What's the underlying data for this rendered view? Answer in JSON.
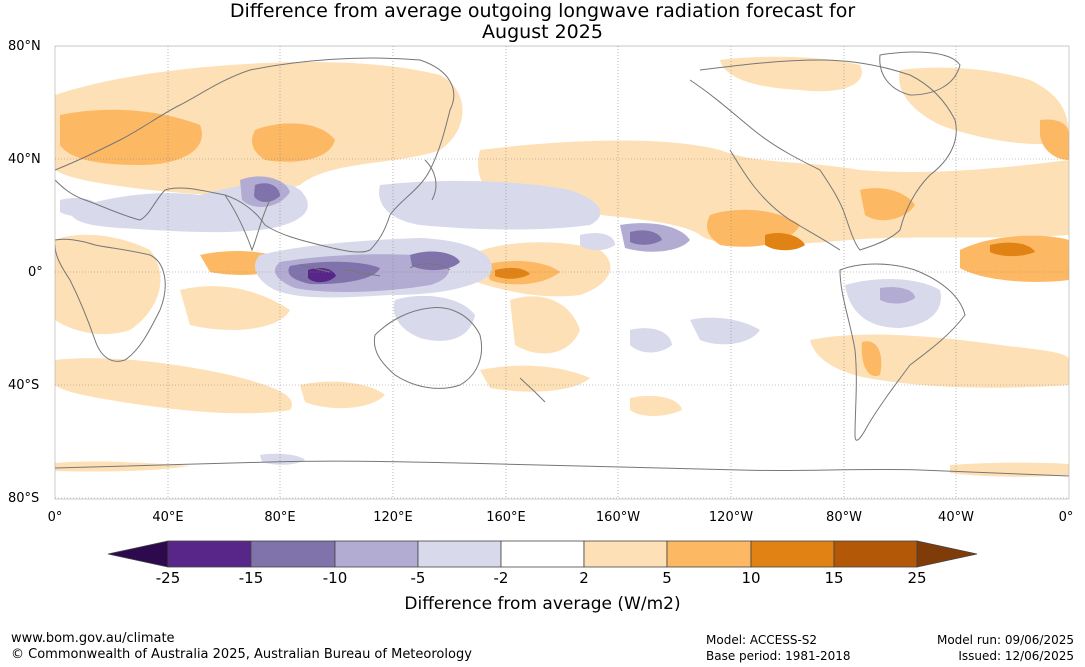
{
  "title": {
    "line1": "Difference from average outgoing longwave radiation forecast for",
    "line2": "August 2025"
  },
  "latitude_labels": [
    "80°N",
    "40°N",
    "0°",
    "40°S",
    "80°S"
  ],
  "longitude_labels": [
    "0°",
    "40°E",
    "80°E",
    "120°E",
    "160°E",
    "160°W",
    "120°W",
    "80°W",
    "40°W",
    "0°"
  ],
  "colorbar": {
    "ticks": [
      "-25",
      "-15",
      "-10",
      "-5",
      "-2",
      "2",
      "5",
      "10",
      "15",
      "25"
    ],
    "label": "Difference from average (W/m2)",
    "colors": [
      "#2d0a4e",
      "#572688",
      "#8073ac",
      "#b2abd2",
      "#d8daeb",
      "#ffffff",
      "#fee0b6",
      "#fdb863",
      "#e08214",
      "#b35806",
      "#7f3b08"
    ]
  },
  "footer": {
    "website": "www.bom.gov.au/climate",
    "copyright": "© Commonwealth of Australia 2025, Australian Bureau of Meteorology",
    "model": "Model: ACCESS-S2",
    "base_period": "Base period: 1981-2018",
    "model_run": "Model run: 09/06/2025",
    "issued": "Issued: 12/06/2025"
  },
  "map_colors": {
    "land_outline": "#777777",
    "grid": "#888888"
  }
}
